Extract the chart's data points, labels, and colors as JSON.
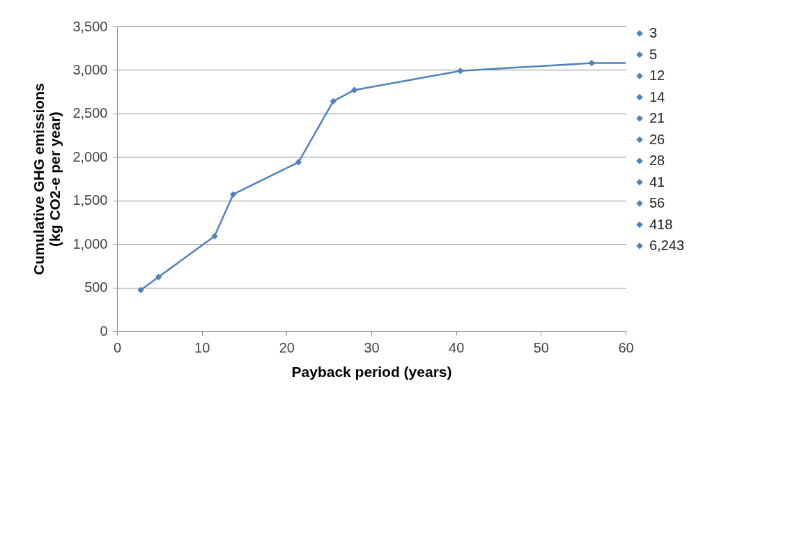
{
  "chart_data": {
    "type": "line",
    "xlabel": "Payback period (years)",
    "ylabel": "Cumulative GHG emissions\n(kg CO2-e per year)",
    "xlim": [
      0,
      60
    ],
    "ylim": [
      0,
      3500
    ],
    "xticks": [
      0,
      10,
      20,
      30,
      40,
      50,
      60
    ],
    "yticks": [
      0,
      500,
      {
        "value": 1000,
        "label": "1,000"
      },
      {
        "value": 1500,
        "label": "1,500"
      },
      {
        "value": 2000,
        "label": "2,000"
      },
      {
        "value": 2500,
        "label": "2,500"
      },
      {
        "value": 3000,
        "label": "3,000"
      },
      {
        "value": 3500,
        "label": "3,500"
      }
    ],
    "grid": "y",
    "legend": "right",
    "marker": "diamond",
    "line_style": "solid",
    "series": [
      {
        "color": "#4f81bd",
        "marker": "none",
        "x": [
          2.8,
          4.9,
          11.5,
          13.7,
          21.4,
          25.5,
          28,
          40.5,
          56,
          60
        ],
        "values": [
          470,
          620,
          1090,
          1570,
          1940,
          2640,
          2770,
          2990,
          3080,
          3080
        ]
      },
      {
        "name": "3",
        "color": "#4f81bd",
        "x": [
          2.8
        ],
        "values": [
          470
        ]
      },
      {
        "name": "5",
        "color": "#4f81bd",
        "x": [
          4.9
        ],
        "values": [
          620
        ]
      },
      {
        "name": "12",
        "color": "#4f81bd",
        "x": [
          11.5
        ],
        "values": [
          1090
        ]
      },
      {
        "name": "14",
        "color": "#4f81bd",
        "x": [
          13.7
        ],
        "values": [
          1570
        ]
      },
      {
        "name": "21",
        "color": "#4f81bd",
        "x": [
          21.4
        ],
        "values": [
          1940
        ]
      },
      {
        "name": "26",
        "color": "#4f81bd",
        "x": [
          25.5
        ],
        "values": [
          2640
        ]
      },
      {
        "name": "28",
        "color": "#4f81bd",
        "x": [
          28
        ],
        "values": [
          2770
        ]
      },
      {
        "name": "41",
        "color": "#4f81bd",
        "x": [
          40.5
        ],
        "values": [
          2990
        ]
      },
      {
        "name": "56",
        "color": "#4f81bd",
        "x": [
          56
        ],
        "values": [
          3080
        ]
      },
      {
        "name": "418",
        "color": "#4f81bd",
        "x": [
          null
        ],
        "values": [
          null
        ]
      },
      {
        "name": "6,243",
        "color": "#4f81bd",
        "x": [
          null
        ],
        "values": [
          null
        ]
      }
    ]
  }
}
